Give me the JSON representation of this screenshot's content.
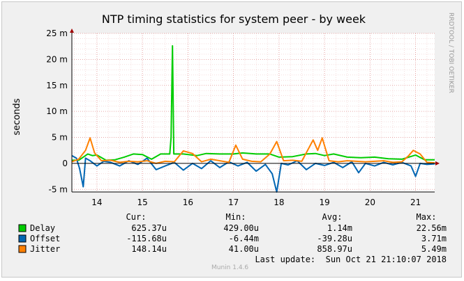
{
  "chart_data": {
    "type": "line",
    "title": "NTP timing statistics for system peer - by week",
    "ylabel": "seconds",
    "watermark": "RRDTOOL / TOBI OETIKER",
    "footer": "Munin 1.4.6",
    "ylim": [
      -0.0055,
      0.025
    ],
    "yticks": [
      {
        "value": 0.025,
        "label": "25 m"
      },
      {
        "value": 0.02,
        "label": "20 m"
      },
      {
        "value": 0.015,
        "label": "15 m"
      },
      {
        "value": 0.01,
        "label": "10 m"
      },
      {
        "value": 0.005,
        "label": "5 m"
      },
      {
        "value": 0.0,
        "label": "0"
      },
      {
        "value": -0.005,
        "label": "-5 m"
      }
    ],
    "xlim": [
      13.45,
      21.42
    ],
    "xticks": [
      {
        "value": 14,
        "label": "14"
      },
      {
        "value": 15,
        "label": "15"
      },
      {
        "value": 16,
        "label": "16"
      },
      {
        "value": 17,
        "label": "17"
      },
      {
        "value": 18,
        "label": "18"
      },
      {
        "value": 19,
        "label": "19"
      },
      {
        "value": 20,
        "label": "20"
      },
      {
        "value": 21,
        "label": "21"
      }
    ],
    "grid": true,
    "legend_headers": {
      "cur": "Cur:",
      "min": "Min:",
      "avg": "Avg:",
      "max": "Max:"
    },
    "series": [
      {
        "name": "Delay",
        "color": "#00cc00",
        "cur": "625.37u",
        "min": "429.00u",
        "avg": "1.14m",
        "max": "22.56m",
        "points": [
          [
            13.45,
            0.0006
          ],
          [
            13.6,
            0.0006
          ],
          [
            13.7,
            0.0012
          ],
          [
            13.8,
            0.0018
          ],
          [
            13.9,
            0.0015
          ],
          [
            14.0,
            0.0016
          ],
          [
            14.2,
            0.0006
          ],
          [
            14.4,
            0.0007
          ],
          [
            14.6,
            0.0012
          ],
          [
            14.8,
            0.0018
          ],
          [
            15.0,
            0.0017
          ],
          [
            15.2,
            0.0008
          ],
          [
            15.4,
            0.0018
          ],
          [
            15.6,
            0.0018
          ],
          [
            15.63,
            0.005
          ],
          [
            15.66,
            0.0226
          ],
          [
            15.69,
            0.0018
          ],
          [
            15.9,
            0.0018
          ],
          [
            16.2,
            0.0015
          ],
          [
            16.4,
            0.0019
          ],
          [
            16.7,
            0.0018
          ],
          [
            17.0,
            0.0018
          ],
          [
            17.2,
            0.002
          ],
          [
            17.5,
            0.0018
          ],
          [
            17.8,
            0.0018
          ],
          [
            18.0,
            0.0012
          ],
          [
            18.3,
            0.0013
          ],
          [
            18.6,
            0.0018
          ],
          [
            18.8,
            0.0019
          ],
          [
            19.0,
            0.0015
          ],
          [
            19.2,
            0.0018
          ],
          [
            19.5,
            0.0012
          ],
          [
            19.8,
            0.0011
          ],
          [
            20.1,
            0.0012
          ],
          [
            20.4,
            0.0009
          ],
          [
            20.7,
            0.0008
          ],
          [
            21.0,
            0.0016
          ],
          [
            21.2,
            0.0007
          ],
          [
            21.42,
            0.0007
          ]
        ]
      },
      {
        "name": "Offset",
        "color": "#0066b3",
        "cur": "-115.68u",
        "min": "-6.44m",
        "avg": "-39.28u",
        "max": "3.71m",
        "points": [
          [
            13.45,
            0.0015
          ],
          [
            13.55,
            0.001
          ],
          [
            13.62,
            -0.001
          ],
          [
            13.7,
            -0.0045
          ],
          [
            13.75,
            0.001
          ],
          [
            13.85,
            0.0005
          ],
          [
            14.0,
            -0.0005
          ],
          [
            14.15,
            0.0004
          ],
          [
            14.3,
            0.0002
          ],
          [
            14.5,
            -0.0005
          ],
          [
            14.7,
            0.0005
          ],
          [
            14.9,
            -0.0002
          ],
          [
            15.1,
            0.001
          ],
          [
            15.3,
            -0.0012
          ],
          [
            15.5,
            -0.0005
          ],
          [
            15.7,
            0.0002
          ],
          [
            15.9,
            -0.0013
          ],
          [
            16.1,
            0.0
          ],
          [
            16.3,
            -0.001
          ],
          [
            16.5,
            0.0005
          ],
          [
            16.7,
            -0.0008
          ],
          [
            16.9,
            0.0003
          ],
          [
            17.1,
            -0.0005
          ],
          [
            17.3,
            0.0002
          ],
          [
            17.5,
            -0.0015
          ],
          [
            17.7,
            -0.0002
          ],
          [
            17.85,
            -0.002
          ],
          [
            17.95,
            -0.0055
          ],
          [
            18.05,
            0.0
          ],
          [
            18.2,
            -0.0003
          ],
          [
            18.4,
            0.0005
          ],
          [
            18.6,
            -0.0012
          ],
          [
            18.8,
            0.0
          ],
          [
            19.0,
            -0.0004
          ],
          [
            19.2,
            0.0002
          ],
          [
            19.4,
            -0.0008
          ],
          [
            19.6,
            0.0003
          ],
          [
            19.75,
            -0.0018
          ],
          [
            19.9,
            0.0
          ],
          [
            20.1,
            -0.0005
          ],
          [
            20.3,
            0.0002
          ],
          [
            20.5,
            -0.0003
          ],
          [
            20.7,
            0.0002
          ],
          [
            20.9,
            -0.0005
          ],
          [
            21.0,
            -0.0025
          ],
          [
            21.1,
            0.0
          ],
          [
            21.25,
            -0.0002
          ],
          [
            21.42,
            -0.0001
          ]
        ]
      },
      {
        "name": "Jitter",
        "color": "#ff8000",
        "cur": "148.14u",
        "min": "41.00u",
        "avg": "858.97u",
        "max": "5.49m",
        "points": [
          [
            13.45,
            0.0003
          ],
          [
            13.6,
            0.0008
          ],
          [
            13.75,
            0.0025
          ],
          [
            13.85,
            0.0049
          ],
          [
            13.95,
            0.002
          ],
          [
            14.1,
            0.0005
          ],
          [
            14.3,
            0.0006
          ],
          [
            14.5,
            0.0002
          ],
          [
            14.7,
            0.0004
          ],
          [
            14.9,
            0.0003
          ],
          [
            15.1,
            0.0005
          ],
          [
            15.3,
            0.0
          ],
          [
            15.5,
            0.0004
          ],
          [
            15.7,
            0.0003
          ],
          [
            15.9,
            0.0024
          ],
          [
            16.1,
            0.0019
          ],
          [
            16.3,
            0.0003
          ],
          [
            16.5,
            0.0008
          ],
          [
            16.7,
            0.0005
          ],
          [
            16.9,
            0.0002
          ],
          [
            17.05,
            0.0035
          ],
          [
            17.2,
            0.0008
          ],
          [
            17.4,
            0.0004
          ],
          [
            17.6,
            0.0003
          ],
          [
            17.8,
            0.0018
          ],
          [
            17.95,
            0.0042
          ],
          [
            18.1,
            0.0005
          ],
          [
            18.3,
            0.0006
          ],
          [
            18.5,
            0.0004
          ],
          [
            18.75,
            0.0045
          ],
          [
            18.85,
            0.0025
          ],
          [
            18.95,
            0.0049
          ],
          [
            19.1,
            0.0005
          ],
          [
            19.3,
            0.0003
          ],
          [
            19.5,
            0.0005
          ],
          [
            19.7,
            0.0004
          ],
          [
            19.9,
            0.0003
          ],
          [
            20.1,
            0.0004
          ],
          [
            20.3,
            0.0005
          ],
          [
            20.5,
            0.0002
          ],
          [
            20.7,
            0.0003
          ],
          [
            20.85,
            0.0015
          ],
          [
            20.95,
            0.0025
          ],
          [
            21.1,
            0.0018
          ],
          [
            21.25,
            0.0002
          ],
          [
            21.42,
            0.0001
          ]
        ]
      }
    ],
    "last_update": "Last update:  Sun Oct 21 21:10:07 2018"
  }
}
